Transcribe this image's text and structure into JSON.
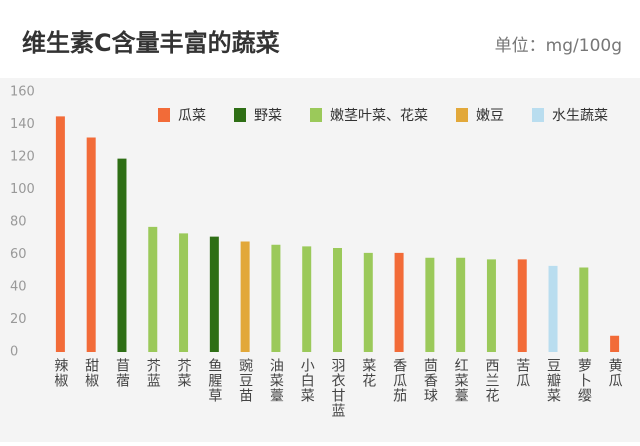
{
  "chart_data": {
    "type": "bar",
    "title": "维生素C含量丰富的蔬菜",
    "subtitle": "单位：mg/100g",
    "categories": [
      "辣椒",
      "甜椒",
      "苜蓿",
      "芥蓝",
      "芥菜",
      "鱼腥草",
      "豌豆苗",
      "油菜薹",
      "小白菜",
      "羽衣甘蓝",
      "菜花",
      "香瓜茄",
      "茴香球",
      "红菜薹",
      "西兰花",
      "苦瓜",
      "豆瓣菜",
      "萝卜缨",
      "黄瓜"
    ],
    "values": [
      145,
      132,
      119,
      77,
      73,
      71,
      68,
      66,
      65,
      64,
      61,
      61,
      58,
      58,
      57,
      57,
      53,
      52,
      10
    ],
    "colors": [
      "#f26b38",
      "#f26b38",
      "#2e6e15",
      "#9bc95a",
      "#9bc95a",
      "#2e6e15",
      "#e2a83a",
      "#9bc95a",
      "#9bc95a",
      "#9bc95a",
      "#9bc95a",
      "#f26b38",
      "#9bc95a",
      "#9bc95a",
      "#9bc95a",
      "#f26b38",
      "#b9ddef",
      "#9bc95a",
      "#f26b38"
    ],
    "legend": [
      {
        "name": "瓜菜",
        "color": "#f26b38"
      },
      {
        "name": "野菜",
        "color": "#2e6e15"
      },
      {
        "name": "嫩茎叶菜、花菜",
        "color": "#9bc95a"
      },
      {
        "name": "嫩豆",
        "color": "#e2a83a"
      },
      {
        "name": "水生蔬菜",
        "color": "#b9ddef"
      }
    ],
    "ylim": [
      0,
      160
    ],
    "yticks": [
      0,
      20,
      40,
      60,
      80,
      100,
      120,
      140,
      160
    ]
  }
}
